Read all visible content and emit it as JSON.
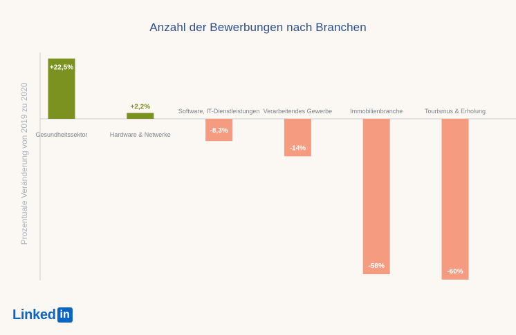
{
  "chart_data": {
    "type": "bar",
    "title": "Anzahl der Bewerbungen nach Branchen",
    "ylabel": "Prozentuale Veränderung von 2019 zu 2020",
    "categories": [
      "Gesundheitssektor",
      "Hardware & Netwerke",
      "Software, IT-Dienstleistungen",
      "Verarbeitendes Gewerbe",
      "Immobilienbranche",
      "Tourismus & Erholung"
    ],
    "values": [
      22.5,
      2.2,
      -8.3,
      -14,
      -58,
      -60
    ],
    "value_labels": [
      "+22,5%",
      "+2,2%",
      "-8,3%",
      "-14%",
      "-58%",
      "-60%"
    ],
    "ylim": [
      -60,
      22.5
    ],
    "grid": false,
    "colors": {
      "positive": "#7b9220",
      "negative": "#f49b80",
      "positive_label": "#7b9220",
      "title": "#2e4f8c",
      "axis": "#c8ccd2",
      "category_label": "#7b828c"
    }
  },
  "logo": {
    "word": "Linked",
    "box": "in",
    "color": "#0a66c2"
  }
}
